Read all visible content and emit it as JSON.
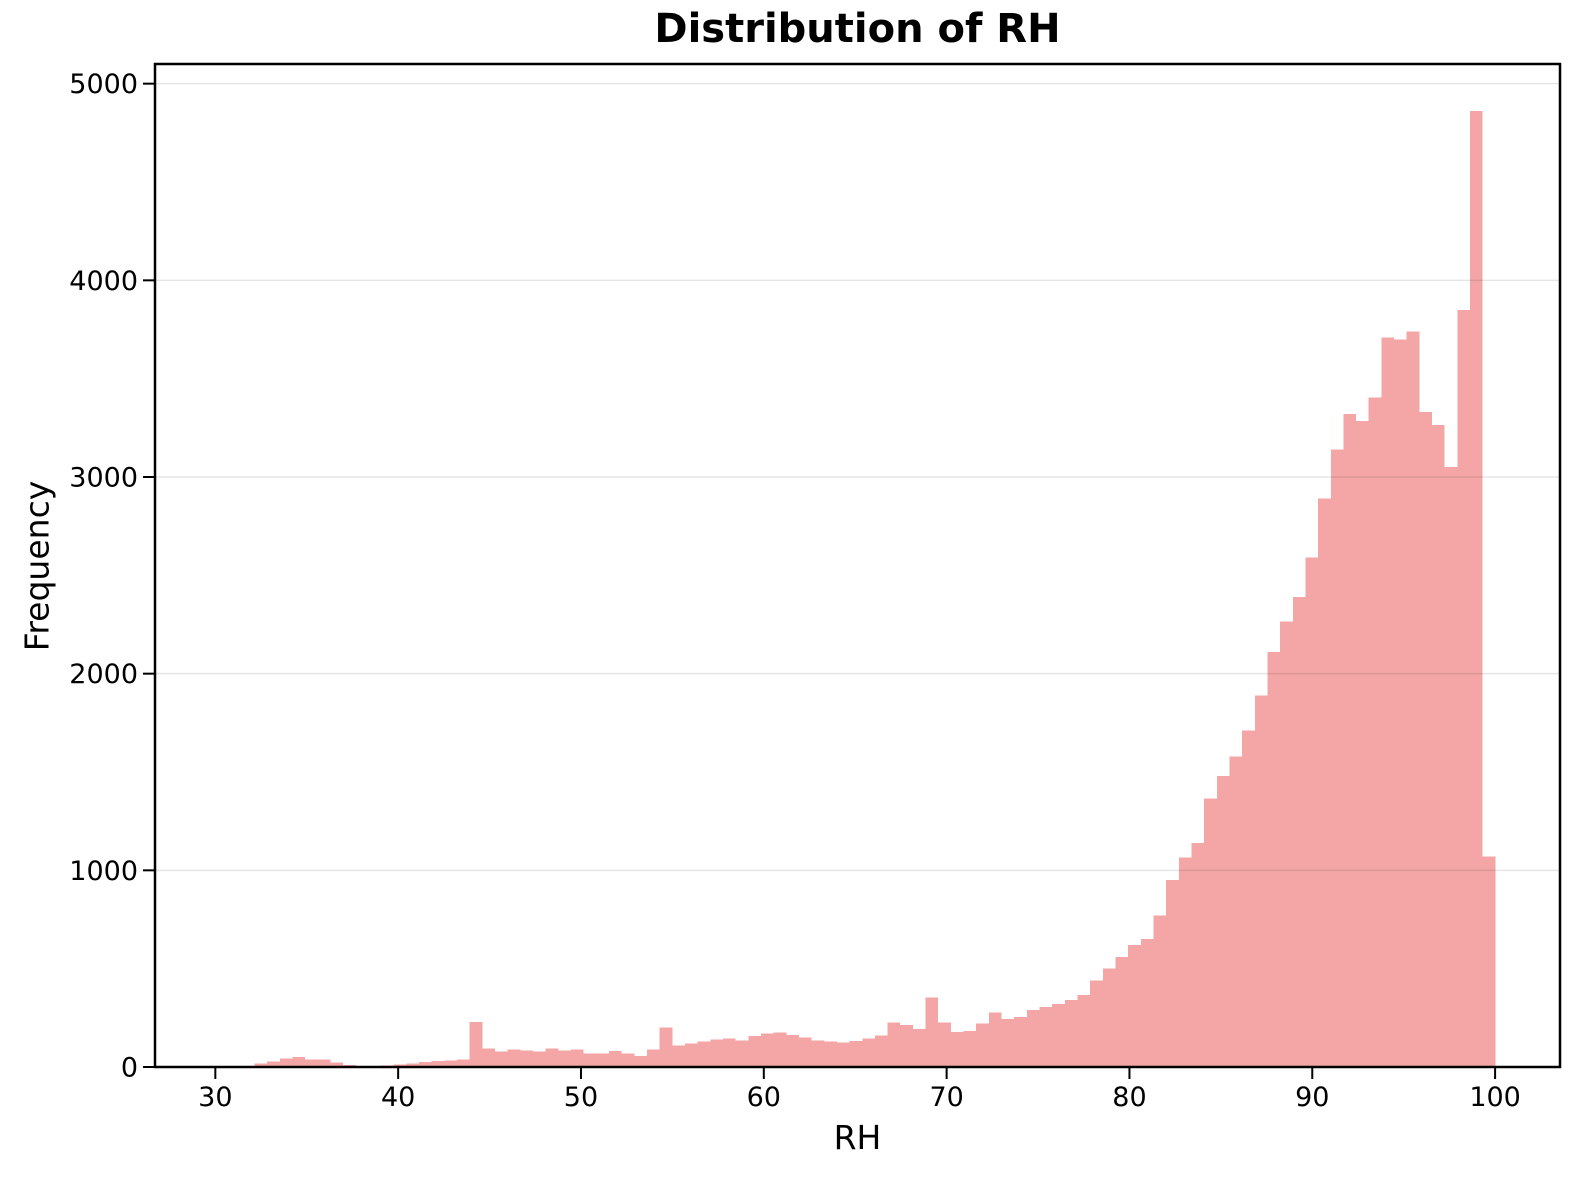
{
  "figure": {
    "title": "Distribution of RH",
    "xlabel": "RH",
    "ylabel": "Frequency"
  },
  "chart_data": {
    "type": "bar",
    "subtype": "histogram",
    "title": "Distribution of RH",
    "xlabel": "RH",
    "ylabel": "Frequency",
    "legend": "none",
    "grid": "horizontal",
    "bin_start": 32.14,
    "bin_width": 0.6926,
    "xlim": [
      26.7,
      103.55
    ],
    "ylim": [
      0,
      5100
    ],
    "xticks": [
      30,
      40,
      50,
      60,
      70,
      80,
      90,
      100
    ],
    "yticks": [
      0,
      1000,
      2000,
      3000,
      4000,
      5000
    ],
    "values": [
      17,
      27,
      44,
      51,
      39,
      39,
      22,
      10,
      5,
      5,
      8,
      14,
      17,
      25,
      31,
      34,
      39,
      230,
      95,
      80,
      90,
      85,
      80,
      95,
      85,
      90,
      68,
      68,
      82,
      68,
      56,
      90,
      200,
      110,
      119,
      129,
      141,
      146,
      136,
      158,
      170,
      175,
      163,
      149,
      136,
      129,
      124,
      132,
      146,
      161,
      226,
      214,
      192,
      353,
      226,
      178,
      182,
      221,
      277,
      245,
      255,
      290,
      305,
      320,
      340,
      367,
      440,
      500,
      560,
      620,
      650,
      770,
      950,
      1065,
      1140,
      1365,
      1480,
      1580,
      1710,
      1890,
      2110,
      2265,
      2390,
      2590,
      2890,
      3140,
      3320,
      3285,
      3405,
      3710,
      3700,
      3740,
      3330,
      3265,
      3050,
      3850,
      4860,
      1070
    ],
    "colors": {
      "bar_fill": "#f4a6a6",
      "axis": "#000000",
      "gridline": "rgba(0,0,0,0.10)",
      "background": "#ffffff"
    }
  }
}
